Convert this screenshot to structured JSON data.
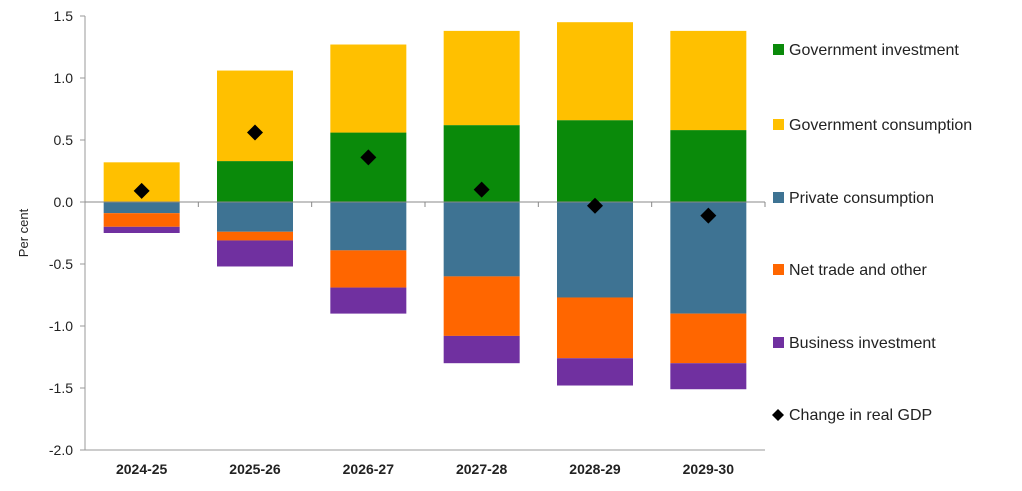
{
  "chart_data": {
    "type": "bar",
    "stacked": true,
    "title": "",
    "xlabel": "",
    "ylabel": "Per cent",
    "ylim": [
      -2.0,
      1.5
    ],
    "yticks": [
      "1.5",
      "1.0",
      "0.5",
      "0.0",
      "-0.5",
      "-1.0",
      "-1.5",
      "-2.0"
    ],
    "ytick_values": [
      1.5,
      1.0,
      0.5,
      0.0,
      -0.5,
      -1.0,
      -1.5,
      -2.0
    ],
    "categories": [
      "2024-25",
      "2025-26",
      "2026-27",
      "2027-28",
      "2028-29",
      "2029-30"
    ],
    "legend_position": "right",
    "series": [
      {
        "name": "Government investment",
        "color": "#0a8a0a",
        "values": [
          0.0,
          0.33,
          0.56,
          0.62,
          0.66,
          0.58
        ]
      },
      {
        "name": "Government consumption",
        "color": "#ffc000",
        "values": [
          0.32,
          0.73,
          0.71,
          0.76,
          0.79,
          0.8
        ]
      },
      {
        "name": "Private consumption",
        "color": "#3e7393",
        "values": [
          -0.09,
          -0.24,
          -0.39,
          -0.6,
          -0.77,
          -0.9
        ]
      },
      {
        "name": "Net trade and other",
        "color": "#ff6600",
        "values": [
          -0.11,
          -0.07,
          -0.3,
          -0.48,
          -0.49,
          -0.4
        ]
      },
      {
        "name": "Business investment",
        "color": "#7030a0",
        "values": [
          -0.05,
          -0.21,
          -0.21,
          -0.22,
          -0.22,
          -0.21
        ]
      }
    ],
    "markers": {
      "name": "Change in real GDP",
      "color": "#000000",
      "values": [
        0.09,
        0.56,
        0.36,
        0.1,
        -0.03,
        -0.11
      ]
    }
  }
}
